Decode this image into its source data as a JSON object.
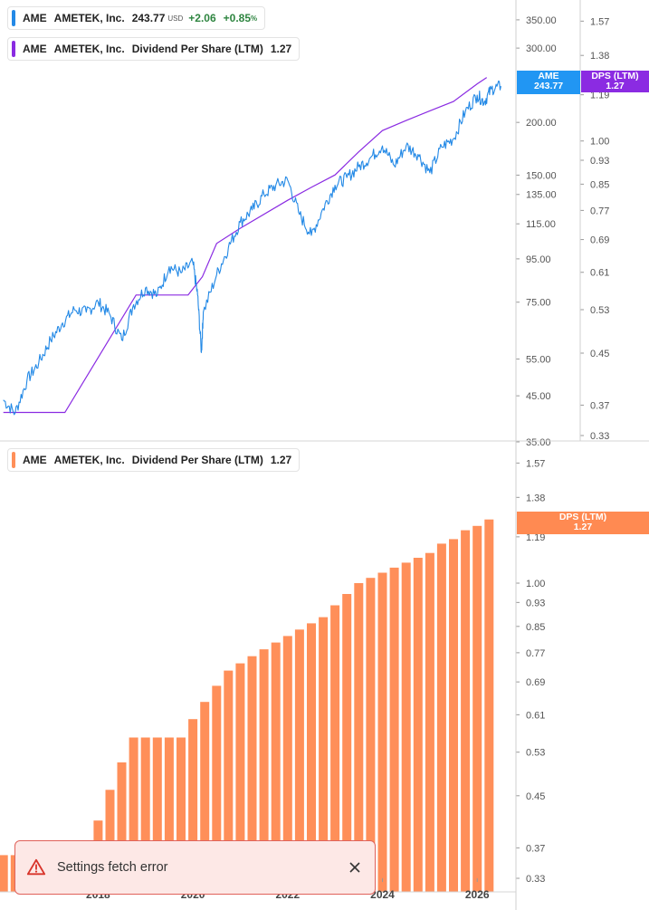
{
  "colors": {
    "price": "#2389e6",
    "dps_line": "#8a2be2",
    "dps_bar": "#ff8f59",
    "dps_badge_bottom": "#ff8a52",
    "price_badge": "#2196f3",
    "dps_badge_top": "#8b2be2"
  },
  "legend_top_price": {
    "ticker": "AME",
    "company": "AMETEK, Inc.",
    "price": "243.77",
    "currency": "USD",
    "change": "+2.06",
    "change_pct": "+0.85",
    "pct_sign": "%"
  },
  "legend_top_dps": {
    "ticker": "AME",
    "company": "AMETEK, Inc.",
    "metric": "Dividend Per Share (LTM)",
    "value": "1.27"
  },
  "legend_bottom_dps": {
    "ticker": "AME",
    "company": "AMETEK, Inc.",
    "metric": "Dividend Per Share (LTM)",
    "value": "1.27"
  },
  "badges": {
    "price_label": "AME",
    "price_value": "243.77",
    "dps_label": "DPS (LTM)",
    "dps_value": "1.27"
  },
  "toast": {
    "message": "Settings fetch error",
    "icon": "warning-triangle-icon",
    "close_icon": "close-icon"
  },
  "chart_data": [
    {
      "type": "line",
      "series": [
        {
          "name": "AME",
          "x": [
            2016.0,
            2016.25,
            2016.5,
            2016.75,
            2017.0,
            2017.25,
            2017.5,
            2017.75,
            2018.0,
            2018.25,
            2018.5,
            2018.75,
            2019.0,
            2019.25,
            2019.5,
            2019.75,
            2020.0,
            2020.1,
            2020.18,
            2020.22,
            2020.5,
            2020.75,
            2021.0,
            2021.25,
            2021.5,
            2021.75,
            2022.0,
            2022.25,
            2022.5,
            2022.75,
            2023.0,
            2023.25,
            2023.5,
            2023.75,
            2024.0,
            2024.25,
            2024.5,
            2024.75,
            2025.0,
            2025.25,
            2025.5,
            2025.75,
            2026.0,
            2026.15,
            2026.3,
            2026.5
          ],
          "values": [
            44,
            41,
            49,
            54,
            61,
            67,
            72,
            71,
            75,
            70,
            61,
            74,
            81,
            78,
            91,
            88,
            93,
            78,
            57,
            71,
            87,
            101,
            116,
            124,
            135,
            142,
            146,
            121,
            108,
            125,
            142,
            148,
            157,
            165,
            176,
            158,
            176,
            168,
            152,
            175,
            183,
            212,
            232,
            224,
            240,
            243.77
          ]
        },
        {
          "name": "Dividend Per Share (LTM)",
          "axis": "secondary",
          "x": [
            2016.0,
            2017.3,
            2018.8,
            2019.9,
            2020.2,
            2020.5,
            2021.0,
            2022.0,
            2022.5,
            2023.0,
            2023.5,
            2024.0,
            2024.5,
            2025.0,
            2025.5,
            2026.0,
            2026.2
          ],
          "values": [
            0.36,
            0.36,
            0.56,
            0.56,
            0.6,
            0.68,
            0.72,
            0.8,
            0.84,
            0.88,
            0.96,
            1.04,
            1.08,
            1.12,
            1.16,
            1.24,
            1.27
          ]
        }
      ],
      "y_scale": "log",
      "ylim": [
        35,
        390
      ],
      "yticks": [
        35,
        45,
        55,
        75,
        95,
        115,
        135,
        150,
        200,
        300,
        350
      ],
      "y2lim": [
        0.33,
        1.7
      ],
      "y2ticks": [
        0.33,
        0.37,
        0.45,
        0.53,
        0.61,
        0.69,
        0.77,
        0.85,
        0.93,
        1.0,
        1.19,
        1.38,
        1.57
      ]
    },
    {
      "type": "bar",
      "series": [
        {
          "name": "Dividend Per Share (LTM)",
          "x": [
            2016.0,
            2016.25,
            2016.5,
            2016.75,
            2017.0,
            2017.25,
            2017.5,
            2017.75,
            2018.0,
            2018.25,
            2018.5,
            2018.75,
            2019.0,
            2019.25,
            2019.5,
            2019.75,
            2020.0,
            2020.25,
            2020.5,
            2020.75,
            2021.0,
            2021.25,
            2021.5,
            2021.75,
            2022.0,
            2022.25,
            2022.5,
            2022.75,
            2023.0,
            2023.25,
            2023.5,
            2023.75,
            2024.0,
            2024.25,
            2024.5,
            2024.75,
            2025.0,
            2025.25,
            2025.5,
            2025.75,
            2026.0,
            2026.25
          ],
          "values": [
            0.36,
            0.36,
            0.36,
            0.36,
            0.36,
            0.36,
            0.36,
            0.36,
            0.41,
            0.46,
            0.51,
            0.56,
            0.56,
            0.56,
            0.56,
            0.56,
            0.6,
            0.64,
            0.68,
            0.72,
            0.74,
            0.76,
            0.78,
            0.8,
            0.82,
            0.84,
            0.86,
            0.88,
            0.92,
            0.96,
            1.0,
            1.02,
            1.04,
            1.06,
            1.08,
            1.1,
            1.12,
            1.16,
            1.18,
            1.22,
            1.24,
            1.27
          ]
        }
      ],
      "y_scale": "log",
      "ylim": [
        0.33,
        1.7
      ],
      "yticks": [
        0.33,
        0.37,
        0.45,
        0.53,
        0.61,
        0.69,
        0.77,
        0.85,
        0.93,
        1.0,
        1.19,
        1.38,
        1.57
      ],
      "xticks": [
        "2018",
        "2020",
        "2022",
        "2024",
        "2026"
      ]
    }
  ]
}
